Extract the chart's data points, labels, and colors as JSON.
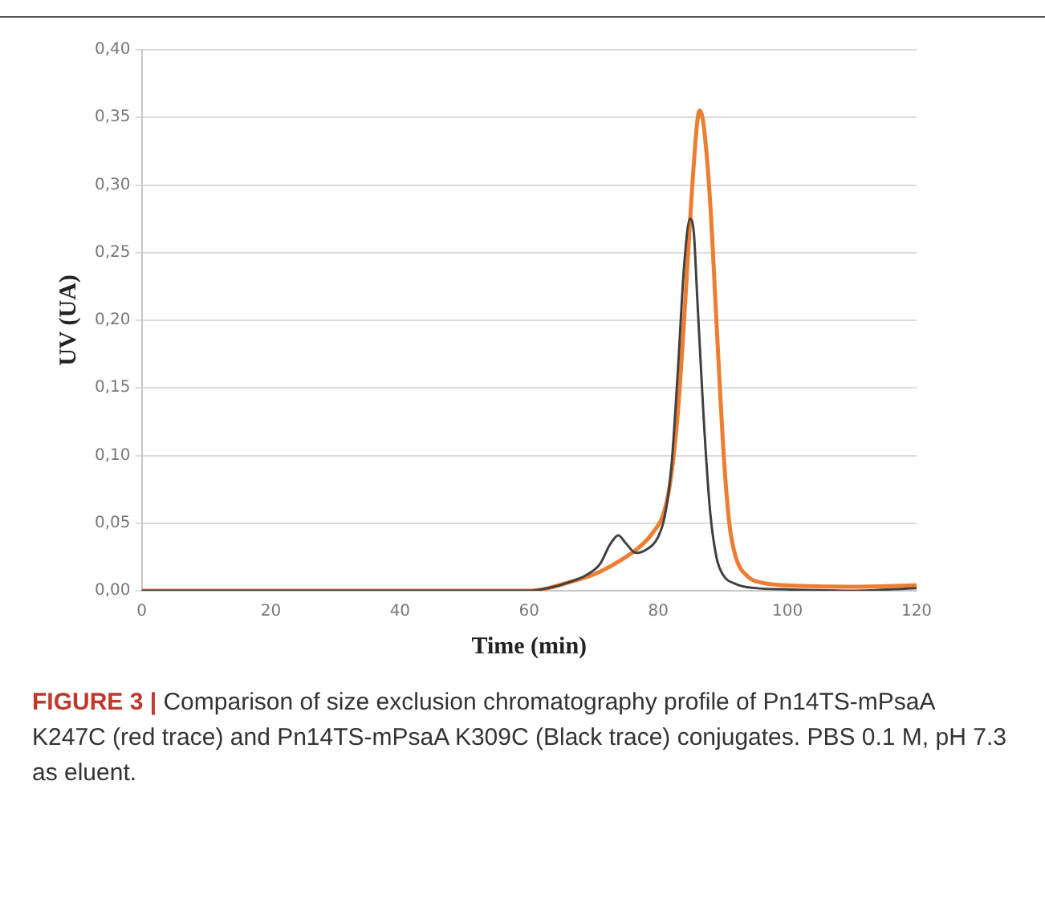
{
  "chart_data": {
    "type": "line",
    "xlabel": "Time (min)",
    "ylabel": "UV (UA)",
    "xlim": [
      0,
      120
    ],
    "xticks": [
      0,
      20,
      40,
      60,
      80,
      100,
      120
    ],
    "ylim": [
      0,
      0.4
    ],
    "yticks": [
      {
        "value": 0,
        "label": "0,00"
      },
      {
        "value": 0.05,
        "label": "0,05"
      },
      {
        "value": 0.1,
        "label": "0,10"
      },
      {
        "value": 0.15,
        "label": "0,15"
      },
      {
        "value": 0.2,
        "label": "0,20"
      },
      {
        "value": 0.25,
        "label": "0,25"
      },
      {
        "value": 0.3,
        "label": "0,30"
      },
      {
        "value": 0.35,
        "label": "0,35"
      },
      {
        "value": 0.4,
        "label": "0,40"
      }
    ],
    "grid": "y",
    "marker": "none",
    "line_style": "solid",
    "series": [
      {
        "color": "#404040",
        "x": [
          0,
          60,
          63,
          66,
          69,
          71,
          72.5,
          73.8,
          75,
          76.5,
          78,
          80,
          81,
          82,
          83,
          84,
          84.9,
          85.5,
          86,
          87,
          88,
          89,
          90,
          92,
          95,
          100,
          110,
          120
        ],
        "values": [
          0,
          0,
          0.002,
          0.006,
          0.012,
          0.02,
          0.034,
          0.041,
          0.035,
          0.028,
          0.03,
          0.04,
          0.055,
          0.09,
          0.16,
          0.24,
          0.275,
          0.265,
          0.22,
          0.13,
          0.06,
          0.025,
          0.012,
          0.005,
          0.002,
          0.001,
          0,
          0.002
        ]
      },
      {
        "color": "#ed7d31",
        "x": [
          0,
          60,
          63,
          66,
          70,
          74,
          77,
          79,
          81,
          82,
          83,
          84,
          85,
          86,
          86.4,
          87,
          88,
          89,
          90,
          91,
          92,
          94,
          96,
          100,
          110,
          120
        ],
        "values": [
          0,
          0,
          0.002,
          0.006,
          0.012,
          0.022,
          0.032,
          0.042,
          0.06,
          0.085,
          0.13,
          0.2,
          0.28,
          0.345,
          0.355,
          0.345,
          0.29,
          0.2,
          0.11,
          0.05,
          0.025,
          0.01,
          0.006,
          0.004,
          0.003,
          0.004
        ]
      }
    ],
    "annotations": [
      "FIGURE 3 |",
      "Comparison of size exclusion chromatography profile of Pn14TS-mPsaA K247C (red trace) and Pn14TS-mPsaA K309C (Black trace) conjugates. PBS 0.1 M, pH 7.3 as eluent."
    ]
  }
}
